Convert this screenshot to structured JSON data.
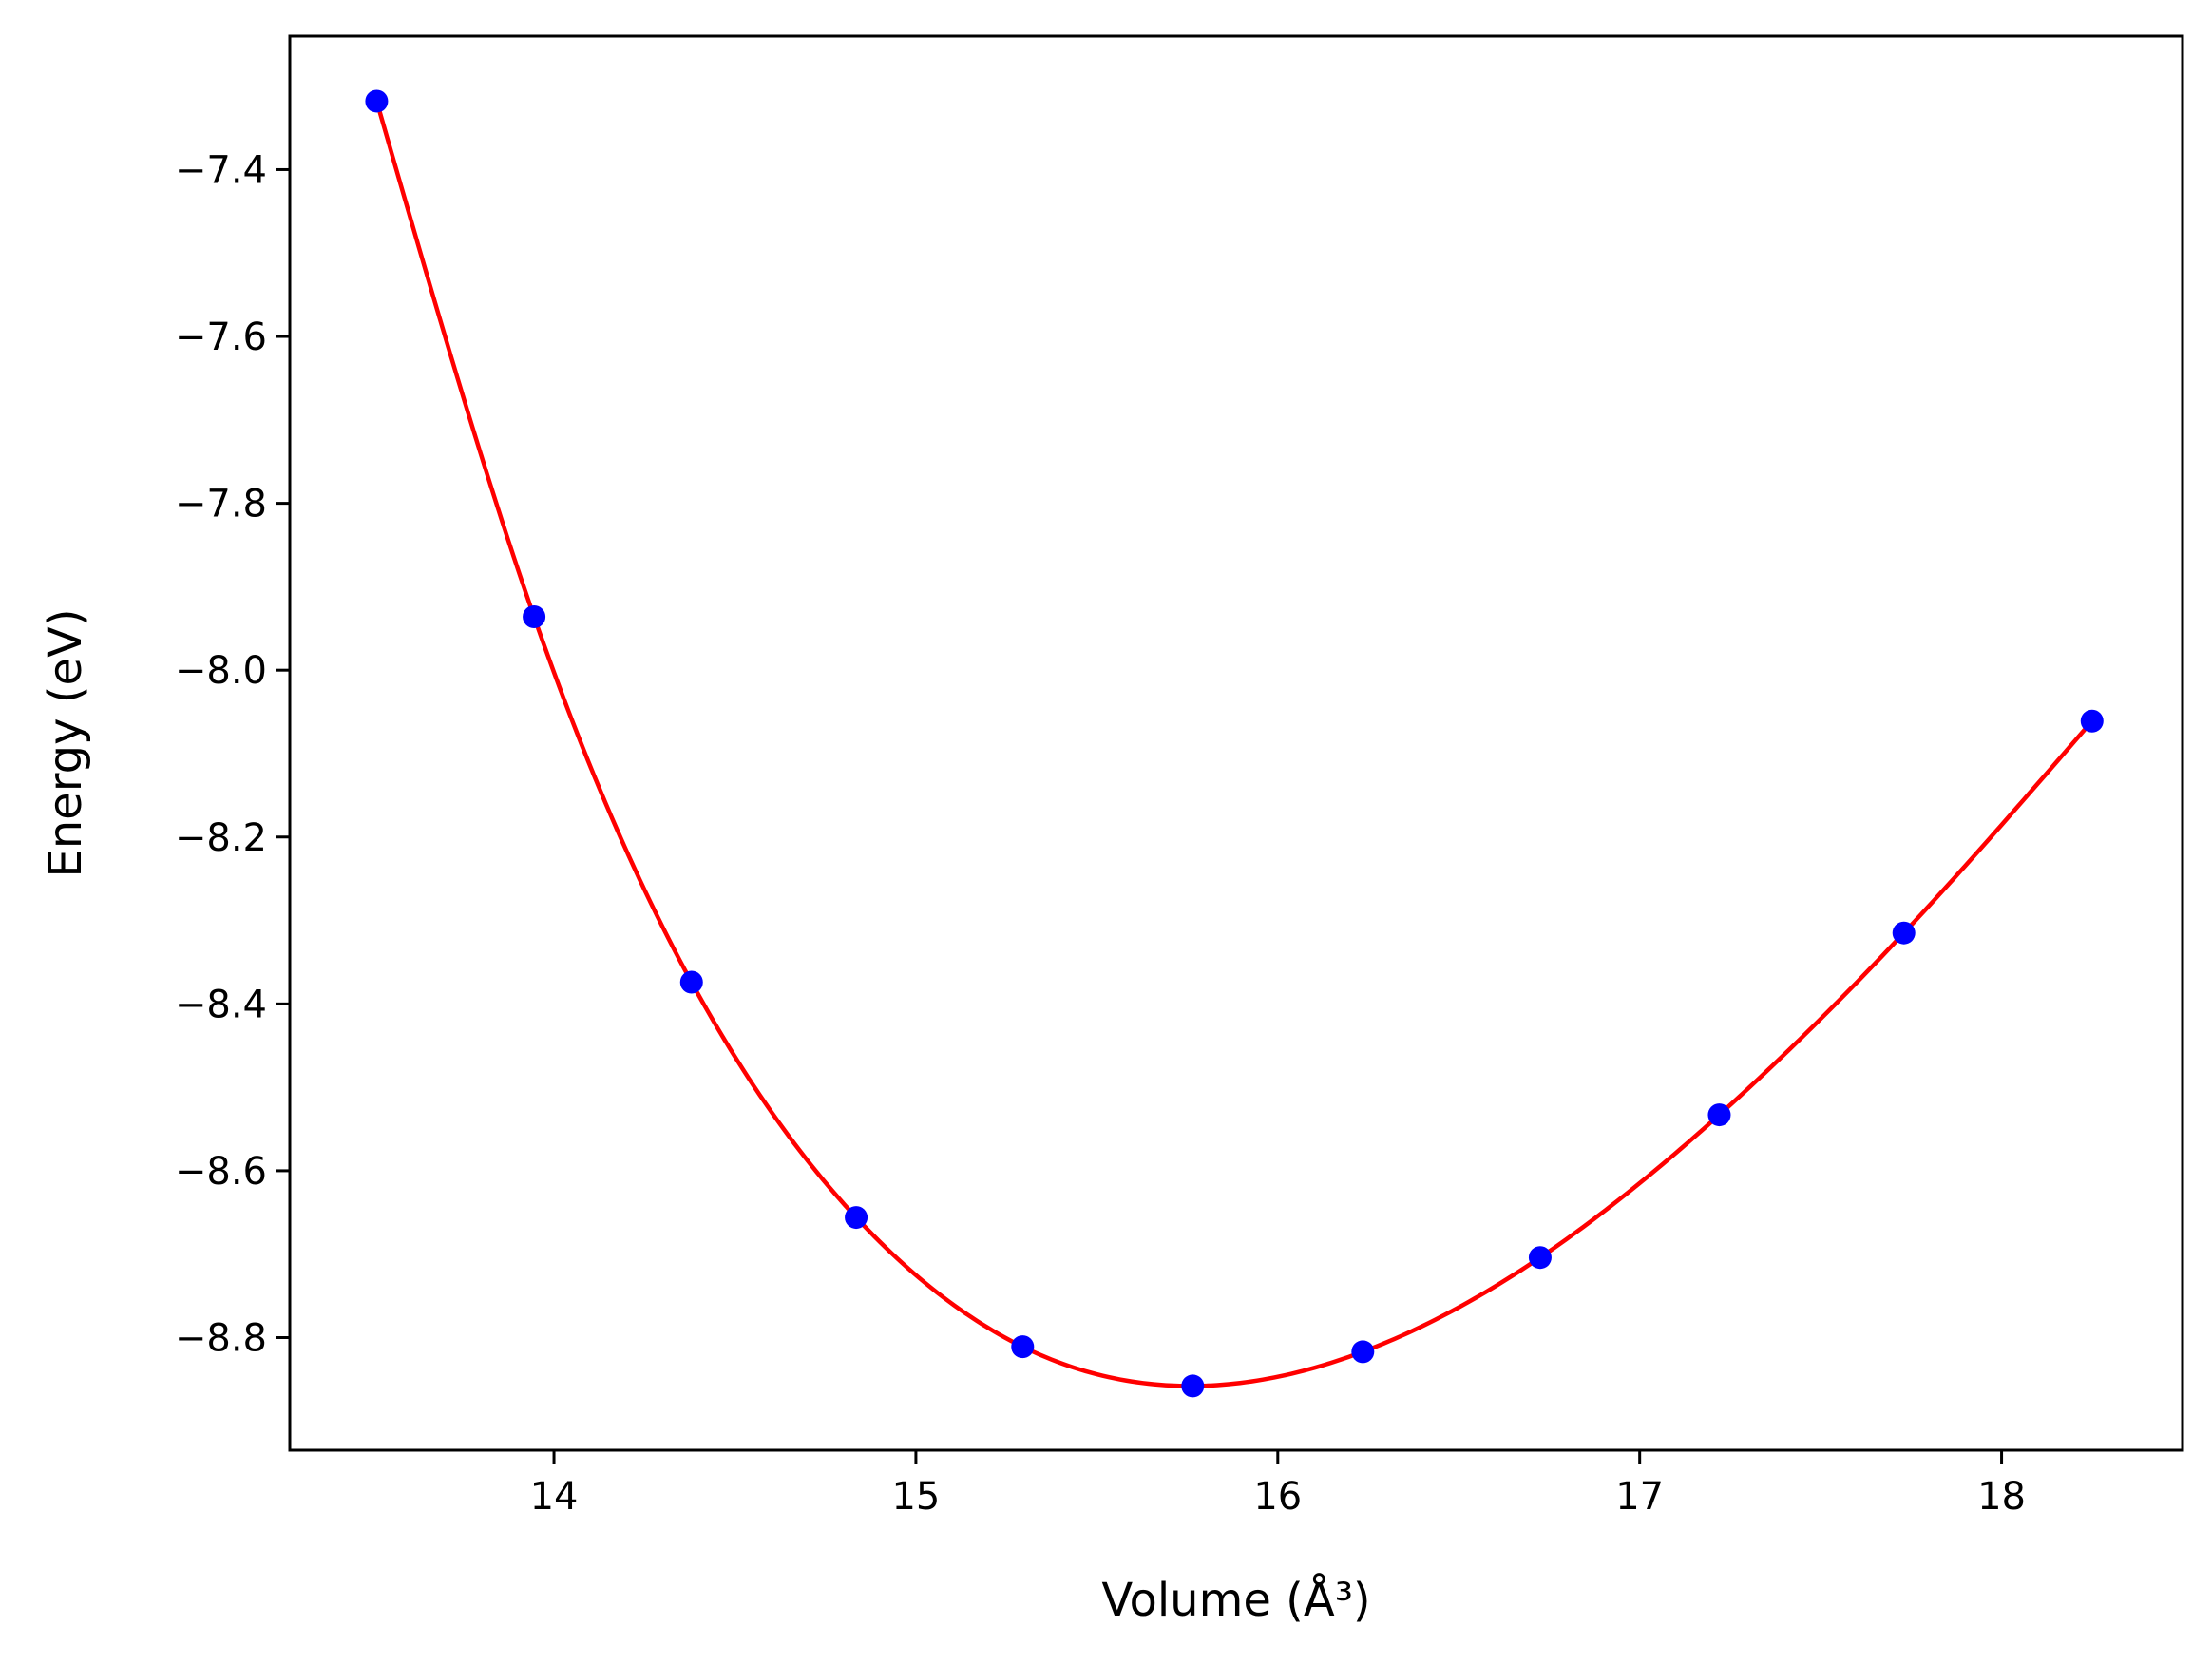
{
  "chart_data": {
    "type": "scatter",
    "title": "",
    "xlabel": "Volume (Å³)",
    "ylabel": "Energy (eV)",
    "xlim": [
      13.27,
      18.5
    ],
    "ylim": [
      -8.935,
      -7.24
    ],
    "xticks": [
      {
        "value": 14,
        "label": "14"
      },
      {
        "value": 15,
        "label": "15"
      },
      {
        "value": 16,
        "label": "16"
      },
      {
        "value": 17,
        "label": "17"
      },
      {
        "value": 18,
        "label": "18"
      }
    ],
    "yticks": [
      {
        "value": -7.4,
        "label": "−7.4"
      },
      {
        "value": -7.6,
        "label": "−7.6"
      },
      {
        "value": -7.8,
        "label": "−7.8"
      },
      {
        "value": -8.0,
        "label": "−8.0"
      },
      {
        "value": -8.2,
        "label": "−8.2"
      },
      {
        "value": -8.4,
        "label": "−8.4"
      },
      {
        "value": -8.6,
        "label": "−8.6"
      },
      {
        "value": -8.8,
        "label": "−8.8"
      }
    ],
    "grid": false,
    "series": [
      {
        "kind": "points",
        "color": "#0000ff",
        "x": [
          13.51,
          13.945,
          14.38,
          14.835,
          15.295,
          15.765,
          16.235,
          16.725,
          17.22,
          17.73,
          18.25
        ],
        "y": [
          -7.318,
          -7.936,
          -8.374,
          -8.656,
          -8.811,
          -8.858,
          -8.817,
          -8.704,
          -8.533,
          -8.315,
          -8.061
        ]
      },
      {
        "kind": "curve",
        "color": "#ff0000",
        "x": [
          13.51,
          13.945,
          14.38,
          14.835,
          15.295,
          15.765,
          16.235,
          16.725,
          17.22,
          17.73,
          18.25
        ],
        "y": [
          -7.318,
          -7.936,
          -8.374,
          -8.656,
          -8.811,
          -8.858,
          -8.817,
          -8.704,
          -8.533,
          -8.315,
          -8.061
        ]
      }
    ]
  }
}
